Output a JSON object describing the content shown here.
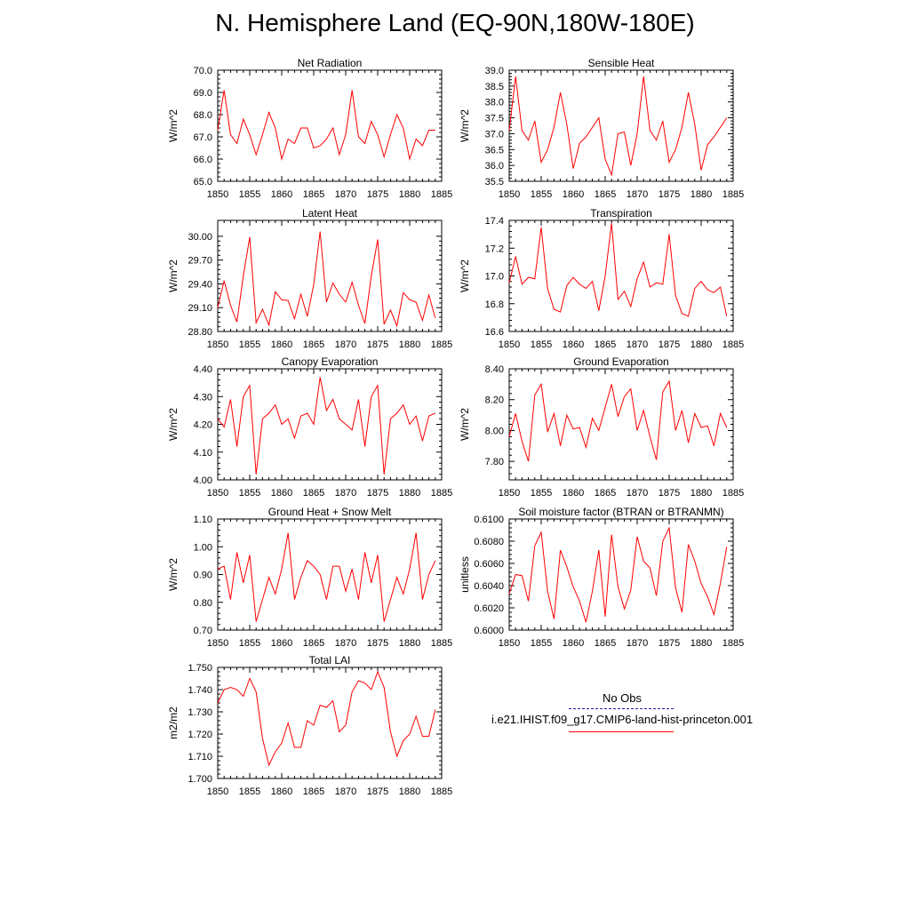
{
  "page": {
    "title": "N. Hemisphere Land (EQ-90N,180W-180E)"
  },
  "legend": {
    "items": [
      {
        "label": "No Obs",
        "color": "#1a1aa8",
        "style": "dashed"
      },
      {
        "label": "i.e21.IHIST.f09_g17.CMIP6-land-hist-princeton.001",
        "color": "#ff0000",
        "style": "solid"
      }
    ]
  },
  "chart_data": [
    {
      "type": "line",
      "title": "Net Radiation",
      "xlabel": "",
      "ylabel": "W/m^2",
      "xlim": [
        1850,
        1885
      ],
      "ylim": [
        65.0,
        70.0
      ],
      "yticks": [
        "65.0",
        "66.0",
        "67.0",
        "68.0",
        "69.0",
        "70.0"
      ],
      "yticks_values": [
        65,
        66,
        67,
        68,
        69,
        70
      ],
      "xticks": [
        1850,
        1855,
        1860,
        1865,
        1870,
        1875,
        1880,
        1885
      ],
      "series": [
        {
          "color": "#ff0000",
          "x": [
            1850,
            1851,
            1852,
            1853,
            1854,
            1855,
            1856,
            1857,
            1858,
            1859,
            1860,
            1861,
            1862,
            1863,
            1864,
            1865,
            1866,
            1867,
            1868,
            1869,
            1870,
            1871,
            1872,
            1873,
            1874,
            1875,
            1876,
            1877,
            1878,
            1879,
            1880,
            1881,
            1882,
            1883,
            1884
          ],
          "y": [
            67.3,
            69.1,
            67.1,
            66.7,
            67.8,
            67.1,
            66.2,
            67.1,
            68.1,
            67.4,
            66.0,
            66.9,
            66.7,
            67.4,
            67.4,
            66.5,
            66.6,
            66.9,
            67.4,
            66.2,
            67.1,
            69.1,
            67.0,
            66.7,
            67.7,
            67.1,
            66.1,
            67.1,
            68.0,
            67.4,
            66.0,
            66.9,
            66.6,
            67.3,
            67.3
          ]
        }
      ]
    },
    {
      "type": "line",
      "title": "Sensible Heat",
      "xlabel": "",
      "ylabel": "W/m^2",
      "xlim": [
        1850,
        1885
      ],
      "ylim": [
        35.5,
        39.0
      ],
      "yticks": [
        "35.5",
        "36.0",
        "36.5",
        "37.0",
        "37.5",
        "38.0",
        "38.5",
        "39.0"
      ],
      "yticks_values": [
        35.5,
        36,
        36.5,
        37,
        37.5,
        38,
        38.5,
        39
      ],
      "xticks": [
        1850,
        1855,
        1860,
        1865,
        1870,
        1875,
        1880,
        1885
      ],
      "series": [
        {
          "color": "#ff0000",
          "x": [
            1850,
            1851,
            1852,
            1853,
            1854,
            1855,
            1856,
            1857,
            1858,
            1859,
            1860,
            1861,
            1862,
            1863,
            1864,
            1865,
            1866,
            1867,
            1868,
            1869,
            1870,
            1871,
            1872,
            1873,
            1874,
            1875,
            1876,
            1877,
            1878,
            1879,
            1880,
            1881,
            1882,
            1883,
            1884
          ],
          "y": [
            37.1,
            38.8,
            37.1,
            36.8,
            37.4,
            36.1,
            36.5,
            37.2,
            38.3,
            37.3,
            35.9,
            36.7,
            36.9,
            37.2,
            37.5,
            36.2,
            35.7,
            37.0,
            37.05,
            36.0,
            37.0,
            38.8,
            37.1,
            36.8,
            37.4,
            36.1,
            36.5,
            37.2,
            38.3,
            37.3,
            35.85,
            36.65,
            36.9,
            37.2,
            37.5
          ]
        }
      ]
    },
    {
      "type": "line",
      "title": "Latent Heat",
      "xlabel": "",
      "ylabel": "W/m^2",
      "xlim": [
        1850,
        1885
      ],
      "ylim": [
        28.8,
        30.2
      ],
      "yticks": [
        "28.80",
        "29.10",
        "29.40",
        "29.70",
        "30.00"
      ],
      "yticks_values": [
        28.8,
        29.1,
        29.4,
        29.7,
        30.0
      ],
      "xticks": [
        1850,
        1855,
        1860,
        1865,
        1870,
        1875,
        1880,
        1885
      ],
      "series": [
        {
          "color": "#ff0000",
          "x": [
            1850,
            1851,
            1852,
            1853,
            1854,
            1855,
            1856,
            1857,
            1858,
            1859,
            1860,
            1861,
            1862,
            1863,
            1864,
            1865,
            1866,
            1867,
            1868,
            1869,
            1870,
            1871,
            1872,
            1873,
            1874,
            1875,
            1876,
            1877,
            1878,
            1879,
            1880,
            1881,
            1882,
            1883,
            1884
          ],
          "y": [
            29.1,
            29.44,
            29.13,
            28.92,
            29.5,
            29.99,
            28.91,
            29.08,
            28.88,
            29.3,
            29.2,
            29.19,
            28.96,
            29.27,
            28.99,
            29.39,
            30.06,
            29.17,
            29.41,
            29.27,
            29.17,
            29.42,
            29.13,
            28.9,
            29.5,
            29.96,
            28.89,
            29.07,
            28.87,
            29.29,
            29.2,
            29.17,
            28.94,
            29.26,
            28.97
          ]
        }
      ]
    },
    {
      "type": "line",
      "title": "Transpiration",
      "xlabel": "",
      "ylabel": "W/m^2",
      "xlim": [
        1850,
        1885
      ],
      "ylim": [
        16.6,
        17.4
      ],
      "yticks": [
        "16.6",
        "16.8",
        "17.0",
        "17.2",
        "17.4"
      ],
      "yticks_values": [
        16.6,
        16.8,
        17.0,
        17.2,
        17.4
      ],
      "xticks": [
        1850,
        1855,
        1860,
        1865,
        1870,
        1875,
        1880,
        1885
      ],
      "series": [
        {
          "color": "#ff0000",
          "x": [
            1850,
            1851,
            1852,
            1853,
            1854,
            1855,
            1856,
            1857,
            1858,
            1859,
            1860,
            1861,
            1862,
            1863,
            1864,
            1865,
            1866,
            1867,
            1868,
            1869,
            1870,
            1871,
            1872,
            1873,
            1874,
            1875,
            1876,
            1877,
            1878,
            1879,
            1880,
            1881,
            1882,
            1883,
            1884
          ],
          "y": [
            16.95,
            17.14,
            16.94,
            16.99,
            16.98,
            17.35,
            16.91,
            16.76,
            16.74,
            16.93,
            16.99,
            16.94,
            16.91,
            16.96,
            16.75,
            17.0,
            17.38,
            16.83,
            16.89,
            16.78,
            16.98,
            17.1,
            16.92,
            16.95,
            16.94,
            17.3,
            16.86,
            16.73,
            16.71,
            16.91,
            16.96,
            16.9,
            16.88,
            16.92,
            16.71
          ]
        }
      ]
    },
    {
      "type": "line",
      "title": "Canopy Evaporation",
      "xlabel": "",
      "ylabel": "W/m^2",
      "xlim": [
        1850,
        1885
      ],
      "ylim": [
        4.0,
        4.4
      ],
      "yticks": [
        "4.00",
        "4.10",
        "4.20",
        "4.30",
        "4.40"
      ],
      "yticks_values": [
        4.0,
        4.1,
        4.2,
        4.3,
        4.4
      ],
      "xticks": [
        1850,
        1855,
        1860,
        1865,
        1870,
        1875,
        1880,
        1885
      ],
      "series": [
        {
          "color": "#ff0000",
          "x": [
            1850,
            1851,
            1852,
            1853,
            1854,
            1855,
            1856,
            1857,
            1858,
            1859,
            1860,
            1861,
            1862,
            1863,
            1864,
            1865,
            1866,
            1867,
            1868,
            1869,
            1870,
            1871,
            1872,
            1873,
            1874,
            1875,
            1876,
            1877,
            1878,
            1879,
            1880,
            1881,
            1882,
            1883,
            1884
          ],
          "y": [
            4.22,
            4.19,
            4.29,
            4.12,
            4.3,
            4.34,
            4.02,
            4.22,
            4.24,
            4.27,
            4.2,
            4.22,
            4.15,
            4.23,
            4.24,
            4.2,
            4.37,
            4.25,
            4.29,
            4.22,
            4.2,
            4.18,
            4.29,
            4.12,
            4.3,
            4.34,
            4.02,
            4.22,
            4.24,
            4.27,
            4.2,
            4.23,
            4.14,
            4.23,
            4.24
          ]
        }
      ]
    },
    {
      "type": "line",
      "title": "Ground Evaporation",
      "xlabel": "",
      "ylabel": "W/m^2",
      "xlim": [
        1850,
        1885
      ],
      "ylim": [
        7.68,
        8.4
      ],
      "yticks": [
        "7.80",
        "8.00",
        "8.20",
        "8.40"
      ],
      "yticks_values": [
        7.8,
        8.0,
        8.2,
        8.4
      ],
      "xticks": [
        1850,
        1855,
        1860,
        1865,
        1870,
        1875,
        1880,
        1885
      ],
      "series": [
        {
          "color": "#ff0000",
          "x": [
            1850,
            1851,
            1852,
            1853,
            1854,
            1855,
            1856,
            1857,
            1858,
            1859,
            1860,
            1861,
            1862,
            1863,
            1864,
            1865,
            1866,
            1867,
            1868,
            1869,
            1870,
            1871,
            1872,
            1873,
            1874,
            1875,
            1876,
            1877,
            1878,
            1879,
            1880,
            1881,
            1882,
            1883,
            1884
          ],
          "y": [
            7.96,
            8.11,
            7.93,
            7.8,
            8.23,
            8.3,
            7.99,
            8.11,
            7.9,
            8.1,
            8.01,
            8.02,
            7.89,
            8.08,
            8.0,
            8.15,
            8.3,
            8.09,
            8.22,
            8.27,
            8.0,
            8.13,
            7.96,
            7.81,
            8.25,
            8.32,
            8.0,
            8.13,
            7.92,
            8.11,
            8.02,
            8.03,
            7.9,
            8.11,
            8.02
          ]
        }
      ]
    },
    {
      "type": "line",
      "title": "Ground Heat + Snow Melt",
      "xlabel": "",
      "ylabel": "W/m^2",
      "xlim": [
        1850,
        1885
      ],
      "ylim": [
        0.7,
        1.1
      ],
      "yticks": [
        "0.70",
        "0.80",
        "0.90",
        "1.00",
        "1.10"
      ],
      "yticks_values": [
        0.7,
        0.8,
        0.9,
        1.0,
        1.1
      ],
      "xticks": [
        1850,
        1855,
        1860,
        1865,
        1870,
        1875,
        1880,
        1885
      ],
      "series": [
        {
          "color": "#ff0000",
          "x": [
            1850,
            1851,
            1852,
            1853,
            1854,
            1855,
            1856,
            1857,
            1858,
            1859,
            1860,
            1861,
            1862,
            1863,
            1864,
            1865,
            1866,
            1867,
            1868,
            1869,
            1870,
            1871,
            1872,
            1873,
            1874,
            1875,
            1876,
            1877,
            1878,
            1879,
            1880,
            1881,
            1882,
            1883,
            1884
          ],
          "y": [
            0.92,
            0.93,
            0.81,
            0.98,
            0.87,
            0.97,
            0.73,
            0.81,
            0.89,
            0.83,
            0.92,
            1.05,
            0.81,
            0.89,
            0.95,
            0.93,
            0.9,
            0.81,
            0.93,
            0.93,
            0.84,
            0.92,
            0.81,
            0.98,
            0.87,
            0.97,
            0.73,
            0.81,
            0.89,
            0.83,
            0.92,
            1.05,
            0.81,
            0.9,
            0.95
          ]
        }
      ]
    },
    {
      "type": "line",
      "title": "Soil moisture factor (BTRAN or BTRANMN)",
      "xlabel": "",
      "ylabel": "unitless",
      "xlim": [
        1850,
        1885
      ],
      "ylim": [
        0.6,
        0.61
      ],
      "yticks": [
        "0.6000",
        "0.6020",
        "0.6040",
        "0.6060",
        "0.6080",
        "0.6100"
      ],
      "yticks_values": [
        0.6,
        0.602,
        0.604,
        0.606,
        0.608,
        0.61
      ],
      "xticks": [
        1850,
        1855,
        1860,
        1865,
        1870,
        1875,
        1880,
        1885
      ],
      "series": [
        {
          "color": "#ff0000",
          "x": [
            1850,
            1851,
            1852,
            1853,
            1854,
            1855,
            1856,
            1857,
            1858,
            1859,
            1860,
            1861,
            1862,
            1863,
            1864,
            1865,
            1866,
            1867,
            1868,
            1869,
            1870,
            1871,
            1872,
            1873,
            1874,
            1875,
            1876,
            1877,
            1878,
            1879,
            1880,
            1881,
            1882,
            1883,
            1884
          ],
          "y": [
            0.6033,
            0.605,
            0.6049,
            0.6026,
            0.6076,
            0.6088,
            0.6035,
            0.601,
            0.6072,
            0.6057,
            0.6039,
            0.6026,
            0.6007,
            0.6035,
            0.6072,
            0.6012,
            0.6086,
            0.6039,
            0.6019,
            0.6036,
            0.6084,
            0.6062,
            0.6056,
            0.6031,
            0.608,
            0.6092,
            0.6038,
            0.6016,
            0.6077,
            0.6062,
            0.6042,
            0.603,
            0.6014,
            0.6042,
            0.6075
          ]
        }
      ]
    },
    {
      "type": "line",
      "title": "Total LAI",
      "xlabel": "",
      "ylabel": "m2/m2",
      "xlim": [
        1850,
        1885
      ],
      "ylim": [
        1.7,
        1.75
      ],
      "yticks": [
        "1.700",
        "1.710",
        "1.720",
        "1.730",
        "1.740",
        "1.750"
      ],
      "yticks_values": [
        1.7,
        1.71,
        1.72,
        1.73,
        1.74,
        1.75
      ],
      "xticks": [
        1850,
        1855,
        1860,
        1865,
        1870,
        1875,
        1880,
        1885
      ],
      "series": [
        {
          "color": "#ff0000",
          "x": [
            1850,
            1851,
            1852,
            1853,
            1854,
            1855,
            1856,
            1857,
            1858,
            1859,
            1860,
            1861,
            1862,
            1863,
            1864,
            1865,
            1866,
            1867,
            1868,
            1869,
            1870,
            1871,
            1872,
            1873,
            1874,
            1875,
            1876,
            1877,
            1878,
            1879,
            1880,
            1881,
            1882,
            1883,
            1884
          ],
          "y": [
            1.734,
            1.74,
            1.741,
            1.74,
            1.737,
            1.745,
            1.739,
            1.718,
            1.706,
            1.712,
            1.716,
            1.725,
            1.714,
            1.714,
            1.726,
            1.724,
            1.733,
            1.732,
            1.735,
            1.721,
            1.724,
            1.739,
            1.744,
            1.743,
            1.74,
            1.748,
            1.741,
            1.721,
            1.71,
            1.717,
            1.72,
            1.728,
            1.719,
            1.719,
            1.731
          ]
        }
      ]
    }
  ]
}
